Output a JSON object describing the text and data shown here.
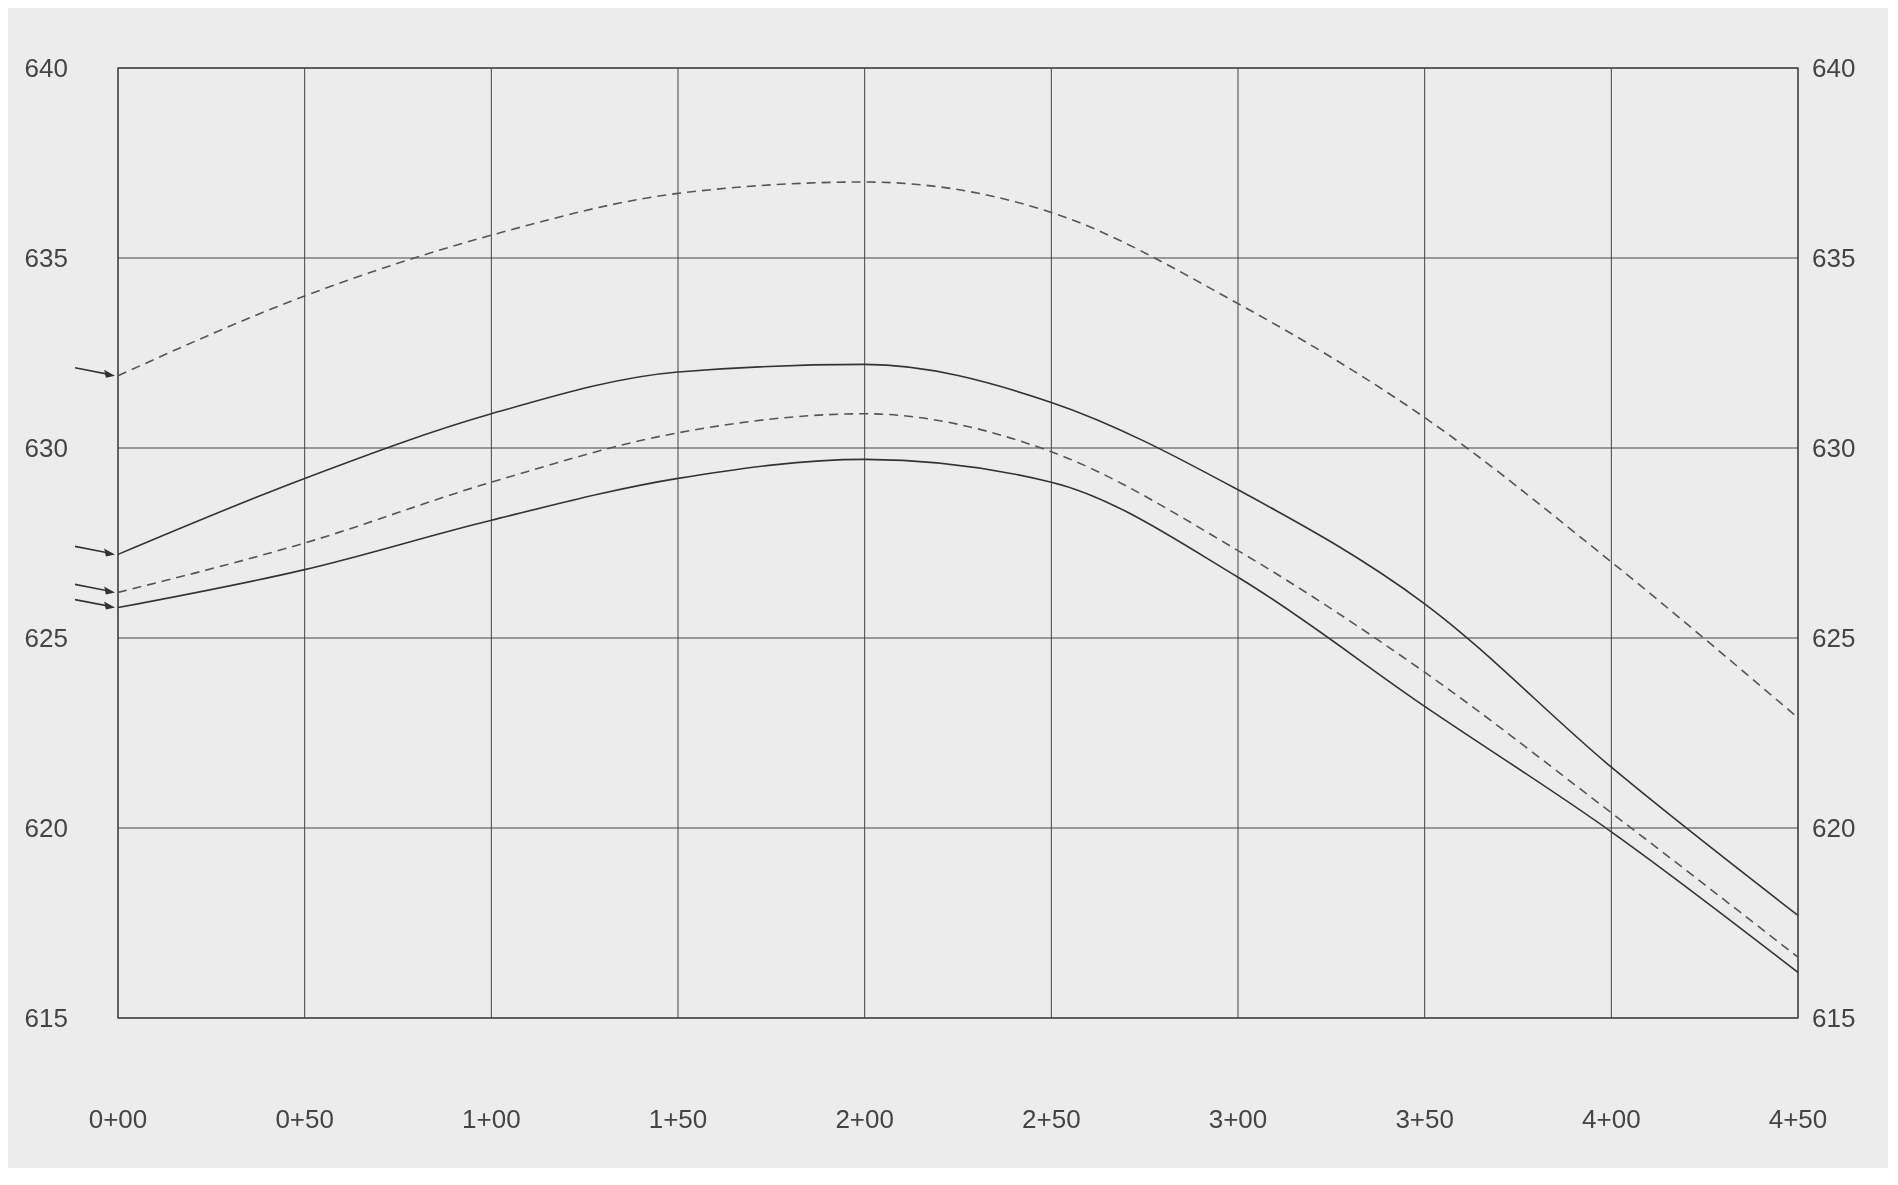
{
  "chart_data": {
    "type": "line",
    "categories": [
      "0+00",
      "0+50",
      "1+00",
      "1+50",
      "2+00",
      "2+50",
      "3+00",
      "3+50",
      "4+00",
      "4+50"
    ],
    "series": [
      {
        "color": "#555555",
        "line_style": "dashed",
        "values": [
          631.9,
          634.0,
          635.6,
          636.7,
          637.0,
          636.2,
          633.8,
          630.8,
          627.0,
          622.9
        ]
      },
      {
        "color": "#333333",
        "line_style": "solid",
        "values": [
          627.2,
          629.2,
          630.9,
          632.0,
          632.2,
          631.2,
          628.9,
          625.9,
          621.6,
          617.7
        ]
      },
      {
        "color": "#555555",
        "line_style": "dashed",
        "values": [
          626.2,
          627.5,
          629.1,
          630.4,
          630.9,
          629.9,
          627.3,
          624.1,
          620.4,
          616.6
        ]
      },
      {
        "color": "#333333",
        "line_style": "solid",
        "values": [
          625.8,
          626.8,
          628.1,
          629.2,
          629.7,
          629.1,
          626.6,
          623.2,
          619.9,
          616.2
        ]
      }
    ],
    "ylim": [
      615,
      640
    ],
    "yticks": [
      615,
      620,
      625,
      630,
      635,
      640
    ],
    "y2lim": [
      615,
      640
    ],
    "y2ticks": [
      615,
      620,
      625,
      630,
      635,
      640
    ],
    "grid": true,
    "marker": "none"
  }
}
